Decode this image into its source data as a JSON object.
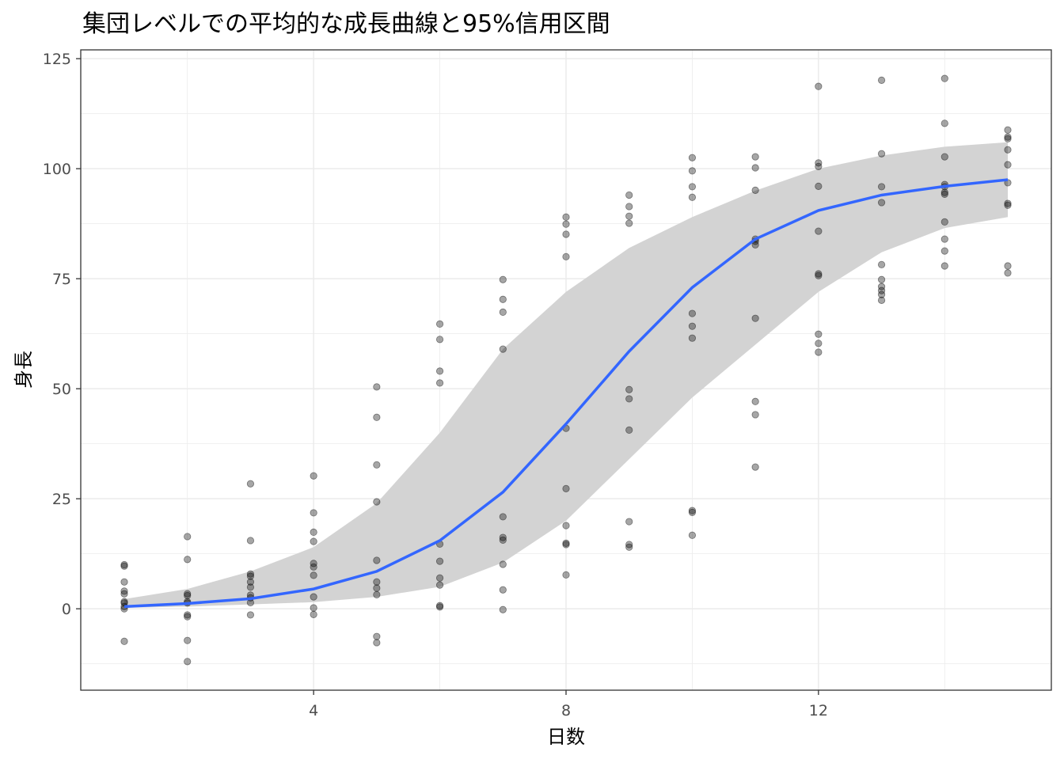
{
  "chart_data": {
    "type": "scatter",
    "title": "集団レベルでの平均的な成長曲線と95%信用区間",
    "xlabel": "日数",
    "ylabel": "身長",
    "xlim": [
      0.31,
      15.69
    ],
    "ylim": [
      -18.5,
      127
    ],
    "x_ticks": [
      4,
      8,
      12
    ],
    "y_ticks": [
      0,
      25,
      50,
      75,
      100,
      125
    ],
    "grid": true,
    "colors": {
      "points": "#000000",
      "line": "#3366FF",
      "band": "#d3d3d3",
      "grid": "#ebebeb"
    },
    "points": [
      [
        1,
        [
          10,
          9.7,
          6.1,
          4,
          3.4,
          1.6,
          1.3,
          0.5,
          0,
          -7.4
        ]
      ],
      [
        2,
        [
          16.4,
          11.2,
          3.4,
          3,
          1.6,
          1.3,
          -1.4,
          -1.8,
          -7.2,
          -12
        ]
      ],
      [
        3,
        [
          28.4,
          15.5,
          7.9,
          7.4,
          6.1,
          4.9,
          3.1,
          2.5,
          1.4,
          -1.4
        ]
      ],
      [
        4,
        [
          30.2,
          21.8,
          17.4,
          15.3,
          10.3,
          9.5,
          7.6,
          2.7,
          0.2,
          -1.3
        ]
      ],
      [
        5,
        [
          50.4,
          43.5,
          32.7,
          24.3,
          11,
          6.1,
          4.7,
          3.2,
          -6.3,
          -7.7
        ]
      ],
      [
        6,
        [
          64.7,
          61.2,
          54,
          51.3,
          14.7,
          10.8,
          7,
          5.4,
          0.7,
          0.4
        ]
      ],
      [
        7,
        [
          74.8,
          70.3,
          67.4,
          59,
          20.9,
          16.2,
          15.6,
          10.1,
          4.3,
          -0.2
        ]
      ],
      [
        8,
        [
          89,
          87.4,
          85.1,
          80,
          41,
          27.3,
          18.9,
          14.9,
          14.6,
          7.7
        ]
      ],
      [
        9,
        [
          94,
          91.4,
          89.2,
          87.6,
          49.8,
          47.7,
          40.6,
          19.8,
          14.6,
          14
        ]
      ],
      [
        10,
        [
          102.5,
          99.5,
          95.9,
          93.5,
          67.1,
          64.2,
          61.5,
          22.3,
          21.9,
          16.7
        ]
      ],
      [
        11,
        [
          102.7,
          100.2,
          95.1,
          84,
          83.5,
          82.7,
          66,
          47.1,
          44.1,
          32.2
        ]
      ],
      [
        12,
        [
          118.7,
          101.3,
          100.5,
          96,
          85.8,
          76.1,
          75.7,
          62.4,
          60.3,
          58.3
        ]
      ],
      [
        13,
        [
          120.1,
          103.4,
          95.9,
          92.3,
          78.2,
          74.8,
          73.2,
          72.3,
          71.4,
          70.1
        ]
      ],
      [
        14,
        [
          120.5,
          110.3,
          102.7,
          96.4,
          95.9,
          94.6,
          94.2,
          87.9,
          84,
          81.3,
          77.9
        ]
      ],
      [
        15,
        [
          108.8,
          107.2,
          106.8,
          104.3,
          100.9,
          96.8,
          92.1,
          91.7,
          77.9,
          76.3
        ]
      ]
    ],
    "fit": {
      "x": [
        1,
        2,
        3,
        4,
        5,
        6,
        7,
        8,
        9,
        10,
        11,
        12,
        13,
        14,
        15
      ],
      "mean": [
        0.5,
        1.2,
        2.3,
        4.5,
        8.5,
        15.5,
        26.5,
        42,
        58.5,
        73,
        84,
        90.5,
        94,
        96,
        97.5
      ],
      "lower": [
        0.2,
        0.5,
        1,
        1.5,
        2.7,
        5,
        10.5,
        20,
        34,
        48,
        60,
        72,
        81,
        86.5,
        89
      ],
      "upper": [
        2.2,
        4.5,
        8.5,
        14,
        24,
        40,
        59,
        72,
        82,
        89,
        95,
        100,
        103,
        105,
        106
      ]
    }
  }
}
